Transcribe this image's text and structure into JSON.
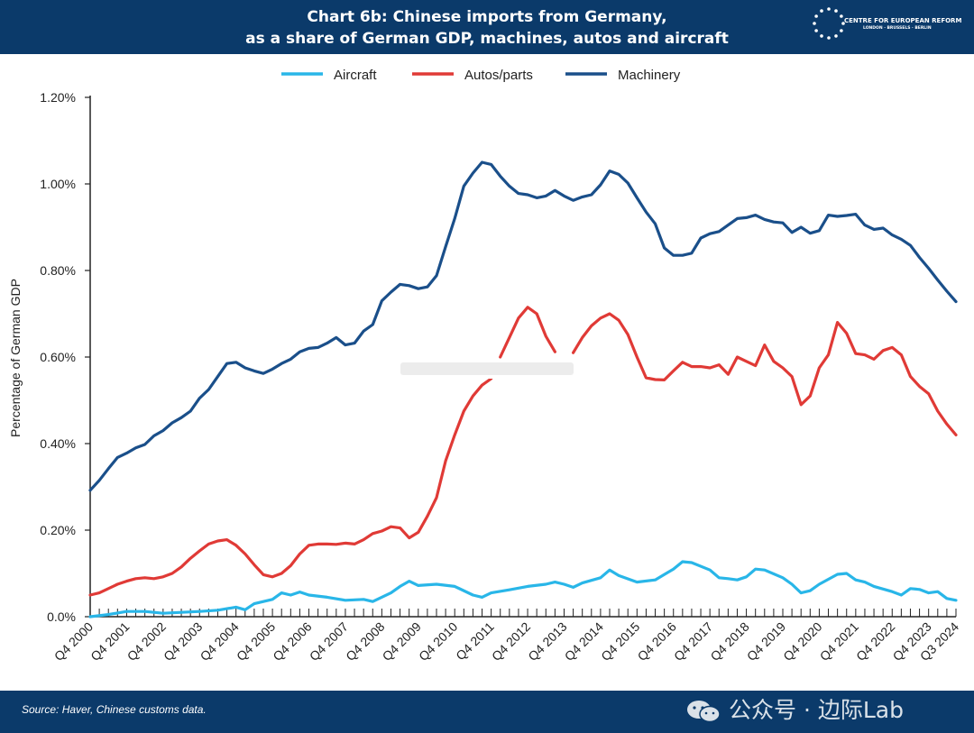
{
  "header": {
    "title_line1": "Chart 6b: Chinese imports from Germany,",
    "title_line2": "as a share of German GDP, machines, autos and aircraft"
  },
  "logo": {
    "text": "CENTRE FOR EUROPEAN REFORM",
    "subtext": "LONDON · BRUSSELS · BERLIN"
  },
  "footer": {
    "source": "Source: Haver, Chinese customs data."
  },
  "watermark": {
    "text": "公众号 · 边际Lab"
  },
  "colors": {
    "aircraft": "#29b6e8",
    "autos": "#e03a36",
    "machinery": "#1a4f8a",
    "brand": "#0b3a6a"
  },
  "chart_data": {
    "type": "line",
    "ylabel": "Percentage of German GDP",
    "y_range": [
      0,
      1.2
    ],
    "y_ticks": [
      "0.0%",
      "0.20%",
      "0.40%",
      "0.60%",
      "0.80%",
      "1.00%",
      "1.20%"
    ],
    "y_tick_values": [
      0,
      0.2,
      0.4,
      0.6,
      0.8,
      1.0,
      1.2
    ],
    "x_tick_labels": [
      "Q4 2000",
      "Q4 2001",
      "Q4 2002",
      "Q4 2003",
      "Q4 2004",
      "Q4 2005",
      "Q4 2006",
      "Q4 2007",
      "Q4 2008",
      "Q4 2009",
      "Q4 2010",
      "Q4 2011",
      "Q4 2012",
      "Q4 2013",
      "Q4 2014",
      "Q4 2015",
      "Q4 2016",
      "Q4 2017",
      "Q4 2018",
      "Q4 2019",
      "Q4 2020",
      "Q4 2021",
      "Q4 2022",
      "Q4 2023",
      "Q3 2024"
    ],
    "x_tick_quarters": [
      "2000Q4",
      "2001Q4",
      "2002Q4",
      "2003Q4",
      "2004Q4",
      "2005Q4",
      "2006Q4",
      "2007Q4",
      "2008Q4",
      "2009Q4",
      "2010Q4",
      "2011Q4",
      "2012Q4",
      "2013Q4",
      "2014Q4",
      "2015Q4",
      "2016Q4",
      "2017Q4",
      "2018Q4",
      "2019Q4",
      "2020Q4",
      "2021Q4",
      "2022Q4",
      "2023Q4",
      "2024Q3"
    ],
    "x_range": [
      "2000Q4",
      "2024Q3"
    ],
    "grid": false,
    "legend_position": "top-center",
    "series": [
      {
        "name": "Aircraft",
        "color": "#29b6e8",
        "points": [
          [
            "2000Q4",
            0.0
          ],
          [
            "2001Q2",
            0.005
          ],
          [
            "2001Q4",
            0.012
          ],
          [
            "2002Q2",
            0.012
          ],
          [
            "2002Q4",
            0.008
          ],
          [
            "2003Q2",
            0.01
          ],
          [
            "2003Q4",
            0.012
          ],
          [
            "2004Q2",
            0.015
          ],
          [
            "2004Q4",
            0.022
          ],
          [
            "2005Q1",
            0.016
          ],
          [
            "2005Q2",
            0.03
          ],
          [
            "2005Q4",
            0.04
          ],
          [
            "2006Q1",
            0.055
          ],
          [
            "2006Q2",
            0.05
          ],
          [
            "2006Q3",
            0.057
          ],
          [
            "2006Q4",
            0.05
          ],
          [
            "2007Q2",
            0.045
          ],
          [
            "2007Q4",
            0.038
          ],
          [
            "2008Q2",
            0.04
          ],
          [
            "2008Q3",
            0.035
          ],
          [
            "2009Q1",
            0.055
          ],
          [
            "2009Q2",
            0.07
          ],
          [
            "2009Q3",
            0.082
          ],
          [
            "2009Q4",
            0.072
          ],
          [
            "2010Q2",
            0.075
          ],
          [
            "2010Q4",
            0.07
          ],
          [
            "2011Q2",
            0.05
          ],
          [
            "2011Q3",
            0.045
          ],
          [
            "2011Q4",
            0.055
          ],
          [
            "2012Q2",
            0.062
          ],
          [
            "2012Q4",
            0.07
          ],
          [
            "2013Q2",
            0.075
          ],
          [
            "2013Q3",
            0.08
          ],
          [
            "2013Q4",
            0.075
          ],
          [
            "2014Q1",
            0.068
          ],
          [
            "2014Q2",
            0.078
          ],
          [
            "2014Q4",
            0.09
          ],
          [
            "2015Q1",
            0.108
          ],
          [
            "2015Q2",
            0.095
          ],
          [
            "2015Q4",
            0.08
          ],
          [
            "2016Q2",
            0.085
          ],
          [
            "2016Q4",
            0.11
          ],
          [
            "2017Q1",
            0.127
          ],
          [
            "2017Q2",
            0.125
          ],
          [
            "2017Q4",
            0.108
          ],
          [
            "2018Q1",
            0.09
          ],
          [
            "2018Q2",
            0.088
          ],
          [
            "2018Q3",
            0.085
          ],
          [
            "2018Q4",
            0.092
          ],
          [
            "2019Q1",
            0.11
          ],
          [
            "2019Q2",
            0.108
          ],
          [
            "2019Q4",
            0.09
          ],
          [
            "2020Q1",
            0.075
          ],
          [
            "2020Q2",
            0.055
          ],
          [
            "2020Q3",
            0.06
          ],
          [
            "2020Q4",
            0.075
          ],
          [
            "2021Q2",
            0.098
          ],
          [
            "2021Q3",
            0.1
          ],
          [
            "2021Q4",
            0.085
          ],
          [
            "2022Q1",
            0.08
          ],
          [
            "2022Q2",
            0.07
          ],
          [
            "2022Q4",
            0.058
          ],
          [
            "2023Q1",
            0.05
          ],
          [
            "2023Q2",
            0.065
          ],
          [
            "2023Q3",
            0.063
          ],
          [
            "2023Q4",
            0.055
          ],
          [
            "2024Q1",
            0.058
          ],
          [
            "2024Q2",
            0.042
          ],
          [
            "2024Q3",
            0.038
          ]
        ]
      },
      {
        "name": "Autos/parts",
        "color": "#e03a36",
        "points": [
          [
            "2000Q4",
            0.05
          ],
          [
            "2001Q1",
            0.055
          ],
          [
            "2001Q3",
            0.075
          ],
          [
            "2001Q4",
            0.082
          ],
          [
            "2002Q1",
            0.088
          ],
          [
            "2002Q2",
            0.09
          ],
          [
            "2002Q3",
            0.088
          ],
          [
            "2002Q4",
            0.092
          ],
          [
            "2003Q1",
            0.1
          ],
          [
            "2003Q2",
            0.115
          ],
          [
            "2003Q3",
            0.135
          ],
          [
            "2003Q4",
            0.152
          ],
          [
            "2004Q1",
            0.168
          ],
          [
            "2004Q2",
            0.175
          ],
          [
            "2004Q3",
            0.178
          ],
          [
            "2004Q4",
            0.165
          ],
          [
            "2005Q1",
            0.145
          ],
          [
            "2005Q2",
            0.12
          ],
          [
            "2005Q3",
            0.097
          ],
          [
            "2005Q4",
            0.092
          ],
          [
            "2006Q1",
            0.1
          ],
          [
            "2006Q2",
            0.118
          ],
          [
            "2006Q3",
            0.145
          ],
          [
            "2006Q4",
            0.165
          ],
          [
            "2007Q1",
            0.168
          ],
          [
            "2007Q2",
            0.168
          ],
          [
            "2007Q3",
            0.167
          ],
          [
            "2007Q4",
            0.17
          ],
          [
            "2008Q1",
            0.168
          ],
          [
            "2008Q2",
            0.178
          ],
          [
            "2008Q3",
            0.192
          ],
          [
            "2008Q4",
            0.198
          ],
          [
            "2009Q1",
            0.208
          ],
          [
            "2009Q2",
            0.205
          ],
          [
            "2009Q3",
            0.182
          ],
          [
            "2009Q4",
            0.195
          ],
          [
            "2010Q1",
            0.232
          ],
          [
            "2010Q2",
            0.275
          ],
          [
            "2010Q3",
            0.36
          ],
          [
            "2010Q4",
            0.42
          ],
          [
            "2011Q1",
            0.475
          ],
          [
            "2011Q2",
            0.51
          ],
          [
            "2011Q3",
            0.535
          ],
          [
            "2011Q4",
            0.55
          ],
          null,
          [
            "2012Q1",
            0.6
          ],
          [
            "2012Q2",
            0.645
          ],
          [
            "2012Q3",
            0.69
          ],
          [
            "2012Q4",
            0.715
          ],
          [
            "2013Q1",
            0.7
          ],
          [
            "2013Q2",
            0.648
          ],
          [
            "2013Q3",
            0.612
          ],
          null,
          [
            "2014Q1",
            0.61
          ],
          [
            "2014Q2",
            0.645
          ],
          [
            "2014Q3",
            0.672
          ],
          [
            "2014Q4",
            0.69
          ],
          [
            "2015Q1",
            0.7
          ],
          [
            "2015Q2",
            0.685
          ],
          [
            "2015Q3",
            0.652
          ],
          [
            "2015Q4",
            0.6
          ],
          [
            "2016Q1",
            0.552
          ],
          [
            "2016Q2",
            0.548
          ],
          [
            "2016Q3",
            0.547
          ],
          [
            "2016Q4",
            0.568
          ],
          [
            "2017Q1",
            0.588
          ],
          [
            "2017Q2",
            0.578
          ],
          [
            "2017Q3",
            0.578
          ],
          [
            "2017Q4",
            0.575
          ],
          [
            "2018Q1",
            0.582
          ],
          [
            "2018Q2",
            0.56
          ],
          [
            "2018Q3",
            0.6
          ],
          [
            "2018Q4",
            0.59
          ],
          [
            "2019Q1",
            0.58
          ],
          [
            "2019Q2",
            0.628
          ],
          [
            "2019Q3",
            0.59
          ],
          [
            "2019Q4",
            0.575
          ],
          [
            "2020Q1",
            0.555
          ],
          [
            "2020Q2",
            0.49
          ],
          [
            "2020Q3",
            0.51
          ],
          [
            "2020Q4",
            0.575
          ],
          [
            "2021Q1",
            0.605
          ],
          [
            "2021Q2",
            0.68
          ],
          [
            "2021Q3",
            0.655
          ],
          [
            "2021Q4",
            0.608
          ],
          [
            "2022Q1",
            0.605
          ],
          [
            "2022Q2",
            0.595
          ],
          [
            "2022Q3",
            0.615
          ],
          [
            "2022Q4",
            0.622
          ],
          [
            "2023Q1",
            0.605
          ],
          [
            "2023Q2",
            0.555
          ],
          [
            "2023Q3",
            0.532
          ],
          [
            "2023Q4",
            0.515
          ],
          [
            "2024Q1",
            0.475
          ],
          [
            "2024Q2",
            0.445
          ],
          [
            "2024Q3",
            0.42
          ]
        ]
      },
      {
        "name": "Machinery",
        "color": "#1a4f8a",
        "points": [
          [
            "2000Q4",
            0.292
          ],
          [
            "2001Q1",
            0.315
          ],
          [
            "2001Q2",
            0.342
          ],
          [
            "2001Q3",
            0.368
          ],
          [
            "2001Q4",
            0.378
          ],
          [
            "2002Q1",
            0.39
          ],
          [
            "2002Q2",
            0.398
          ],
          [
            "2002Q3",
            0.418
          ],
          [
            "2002Q4",
            0.43
          ],
          [
            "2003Q1",
            0.448
          ],
          [
            "2003Q2",
            0.46
          ],
          [
            "2003Q3",
            0.475
          ],
          [
            "2003Q4",
            0.505
          ],
          [
            "2004Q1",
            0.525
          ],
          [
            "2004Q2",
            0.555
          ],
          [
            "2004Q3",
            0.585
          ],
          [
            "2004Q4",
            0.588
          ],
          [
            "2005Q1",
            0.575
          ],
          [
            "2005Q2",
            0.568
          ],
          [
            "2005Q3",
            0.562
          ],
          [
            "2005Q4",
            0.572
          ],
          [
            "2006Q1",
            0.585
          ],
          [
            "2006Q2",
            0.595
          ],
          [
            "2006Q3",
            0.612
          ],
          [
            "2006Q4",
            0.62
          ],
          [
            "2007Q1",
            0.622
          ],
          [
            "2007Q2",
            0.632
          ],
          [
            "2007Q3",
            0.645
          ],
          [
            "2007Q4",
            0.628
          ],
          [
            "2008Q1",
            0.632
          ],
          [
            "2008Q2",
            0.66
          ],
          [
            "2008Q3",
            0.675
          ],
          [
            "2008Q4",
            0.73
          ],
          [
            "2009Q1",
            0.75
          ],
          [
            "2009Q2",
            0.768
          ],
          [
            "2009Q3",
            0.765
          ],
          [
            "2009Q4",
            0.758
          ],
          [
            "2010Q1",
            0.762
          ],
          [
            "2010Q2",
            0.788
          ],
          [
            "2010Q3",
            0.855
          ],
          [
            "2010Q4",
            0.92
          ],
          [
            "2011Q1",
            0.995
          ],
          [
            "2011Q2",
            1.025
          ],
          [
            "2011Q3",
            1.05
          ],
          [
            "2011Q4",
            1.045
          ],
          [
            "2012Q1",
            1.018
          ],
          [
            "2012Q2",
            0.995
          ],
          [
            "2012Q3",
            0.978
          ],
          [
            "2012Q4",
            0.975
          ],
          [
            "2013Q1",
            0.968
          ],
          [
            "2013Q2",
            0.972
          ],
          [
            "2013Q3",
            0.985
          ],
          [
            "2013Q4",
            0.972
          ],
          [
            "2014Q1",
            0.962
          ],
          [
            "2014Q2",
            0.97
          ],
          [
            "2014Q3",
            0.975
          ],
          [
            "2014Q4",
            0.998
          ],
          [
            "2015Q1",
            1.03
          ],
          [
            "2015Q2",
            1.022
          ],
          [
            "2015Q3",
            1.002
          ],
          [
            "2015Q4",
            0.968
          ],
          [
            "2016Q1",
            0.935
          ],
          [
            "2016Q2",
            0.908
          ],
          [
            "2016Q3",
            0.852
          ],
          [
            "2016Q4",
            0.835
          ],
          [
            "2017Q1",
            0.835
          ],
          [
            "2017Q2",
            0.84
          ],
          [
            "2017Q3",
            0.875
          ],
          [
            "2017Q4",
            0.885
          ],
          [
            "2018Q1",
            0.89
          ],
          [
            "2018Q2",
            0.905
          ],
          [
            "2018Q3",
            0.92
          ],
          [
            "2018Q4",
            0.922
          ],
          [
            "2019Q1",
            0.928
          ],
          [
            "2019Q2",
            0.918
          ],
          [
            "2019Q3",
            0.912
          ],
          [
            "2019Q4",
            0.91
          ],
          [
            "2020Q1",
            0.888
          ],
          [
            "2020Q2",
            0.9
          ],
          [
            "2020Q3",
            0.886
          ],
          [
            "2020Q4",
            0.892
          ],
          [
            "2021Q1",
            0.928
          ],
          [
            "2021Q2",
            0.925
          ],
          [
            "2021Q3",
            0.927
          ],
          [
            "2021Q4",
            0.93
          ],
          [
            "2022Q1",
            0.905
          ],
          [
            "2022Q2",
            0.895
          ],
          [
            "2022Q3",
            0.898
          ],
          [
            "2022Q4",
            0.882
          ],
          [
            "2023Q1",
            0.872
          ],
          [
            "2023Q2",
            0.858
          ],
          [
            "2023Q3",
            0.83
          ],
          [
            "2023Q4",
            0.805
          ],
          [
            "2024Q1",
            0.778
          ],
          [
            "2024Q2",
            0.752
          ],
          [
            "2024Q3",
            0.728
          ]
        ]
      }
    ]
  }
}
